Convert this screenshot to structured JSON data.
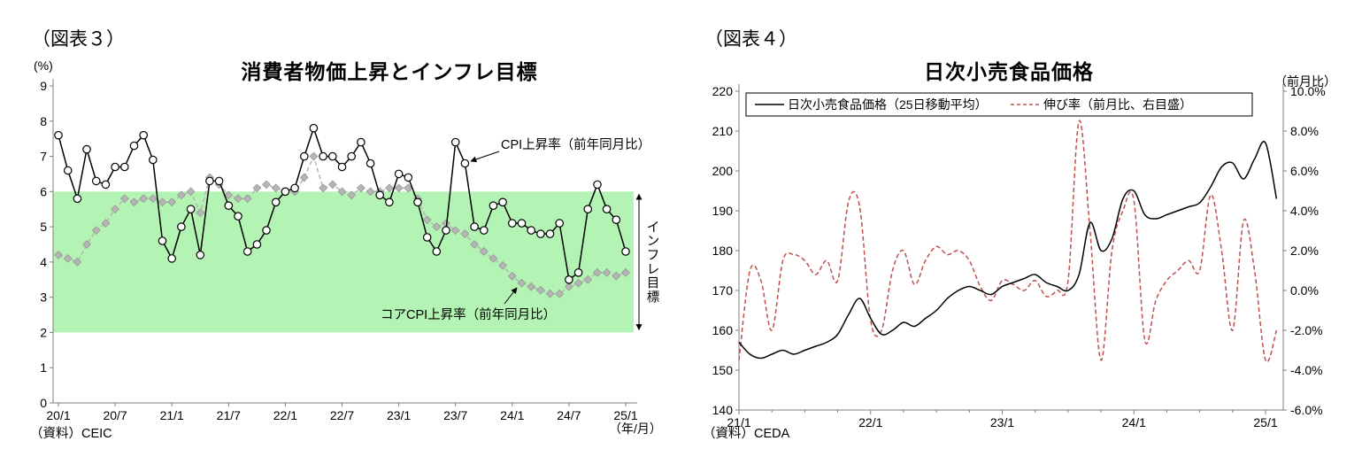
{
  "figures": [
    {
      "label": "（図表３）",
      "source": "（資料）CEIC"
    },
    {
      "label": "（図表４）",
      "source": "（資料）CEDA"
    }
  ],
  "chart_data": [
    {
      "type": "line",
      "title": "消費者物価上昇とインフレ目標",
      "ylabel": "(%)",
      "xlabel": "（年/月）",
      "ylim": [
        0,
        9
      ],
      "y_ticks": [
        0,
        1,
        2,
        3,
        4,
        5,
        6,
        7,
        8,
        9
      ],
      "x_ticks": [
        {
          "m": 0,
          "label": "20/1"
        },
        {
          "m": 6,
          "label": "20/7"
        },
        {
          "m": 12,
          "label": "21/1"
        },
        {
          "m": 18,
          "label": "21/7"
        },
        {
          "m": 24,
          "label": "22/1"
        },
        {
          "m": 30,
          "label": "22/7"
        },
        {
          "m": 36,
          "label": "23/1"
        },
        {
          "m": 42,
          "label": "23/7"
        },
        {
          "m": 48,
          "label": "24/1"
        },
        {
          "m": 54,
          "label": "24/7"
        },
        {
          "m": 60,
          "label": "25/1"
        }
      ],
      "band": {
        "from": 2,
        "to": 6,
        "color": "#b3f3b3",
        "label": "インフレ目標"
      },
      "series": [
        {
          "name": "CPI上昇率（前年同月比）",
          "style": "solid",
          "color": "#000000",
          "marker": "circle",
          "values": [
            7.6,
            6.6,
            5.8,
            7.2,
            6.3,
            6.2,
            6.7,
            6.7,
            7.3,
            7.6,
            6.9,
            4.6,
            4.1,
            5.0,
            5.5,
            4.2,
            6.3,
            6.3,
            5.6,
            5.3,
            4.3,
            4.5,
            4.9,
            5.7,
            6.0,
            6.1,
            7.0,
            7.8,
            7.0,
            7.0,
            6.7,
            7.0,
            7.4,
            6.8,
            5.9,
            5.7,
            6.5,
            6.4,
            5.7,
            4.7,
            4.3,
            4.9,
            7.4,
            6.8,
            5.0,
            4.9,
            5.6,
            5.7,
            5.1,
            5.1,
            4.9,
            4.8,
            4.8,
            5.1,
            3.5,
            3.7,
            5.5,
            6.2,
            5.5,
            5.2,
            4.3
          ]
        },
        {
          "name": "コアCPI上昇率（前年同月比）",
          "style": "dashed",
          "color": "#b5b5b5",
          "marker": "diamond",
          "values": [
            4.2,
            4.1,
            4.0,
            4.5,
            4.9,
            5.1,
            5.5,
            5.8,
            5.7,
            5.8,
            5.8,
            5.7,
            5.7,
            5.9,
            6.0,
            5.4,
            6.4,
            6.2,
            5.9,
            5.8,
            5.8,
            6.1,
            6.2,
            6.1,
            6.0,
            6.0,
            6.4,
            7.0,
            6.1,
            6.2,
            6.0,
            5.9,
            6.1,
            6.0,
            6.0,
            6.1,
            6.1,
            6.1,
            5.8,
            5.2,
            5.0,
            5.1,
            4.9,
            4.8,
            4.5,
            4.3,
            4.1,
            3.9,
            3.6,
            3.4,
            3.3,
            3.2,
            3.1,
            3.1,
            3.3,
            3.4,
            3.5,
            3.7,
            3.7,
            3.6,
            3.7
          ]
        }
      ]
    },
    {
      "type": "line",
      "title": "日次小売食品価格",
      "right_axis_label": "（前月比）",
      "ylim_left": [
        140,
        220
      ],
      "ylim_right": [
        -6,
        10
      ],
      "left_ticks": [
        140,
        150,
        160,
        170,
        180,
        190,
        200,
        210,
        220
      ],
      "right_ticks": [
        {
          "v": -6,
          "label": "-6.0%"
        },
        {
          "v": -4,
          "label": "-4.0%"
        },
        {
          "v": -2,
          "label": "-2.0%"
        },
        {
          "v": 0,
          "label": "0.0%"
        },
        {
          "v": 2,
          "label": "2.0%"
        },
        {
          "v": 4,
          "label": "4.0%"
        },
        {
          "v": 6,
          "label": "6.0%"
        },
        {
          "v": 8,
          "label": "8.0%"
        },
        {
          "v": 10,
          "label": "10.0%"
        }
      ],
      "x_ticks": [
        {
          "m": 0,
          "label": "21/1"
        },
        {
          "m": 12,
          "label": "22/1"
        },
        {
          "m": 24,
          "label": "23/1"
        },
        {
          "m": 36,
          "label": "24/1"
        },
        {
          "m": 48,
          "label": "25/1"
        }
      ],
      "series": [
        {
          "name": "日次小売食品価格（25日移動平均）",
          "axis": "left",
          "style": "solid",
          "color": "#000000",
          "values": [
            157,
            154,
            153,
            154,
            155,
            154,
            155,
            156,
            157,
            159,
            164,
            168,
            163,
            159,
            160,
            162,
            161,
            163,
            165,
            168,
            170,
            171,
            170,
            169,
            171,
            172,
            173,
            174,
            172,
            171,
            170,
            174,
            187,
            180,
            183,
            193,
            195,
            189,
            188,
            189,
            190,
            191,
            192,
            196,
            201,
            202,
            198,
            203,
            207,
            193
          ]
        },
        {
          "name": "伸び率（前月比、右目盛）",
          "axis": "right",
          "style": "dashed",
          "color": "#c0504d",
          "values": [
            -3.5,
            1.0,
            0.5,
            -2.0,
            1.5,
            1.8,
            1.5,
            0.8,
            1.5,
            0.5,
            4.5,
            4.2,
            -1.5,
            -2.0,
            1.0,
            2.0,
            0.3,
            1.5,
            2.2,
            1.8,
            2.0,
            1.5,
            0.2,
            -0.5,
            0.5,
            0.3,
            0.0,
            0.5,
            -0.3,
            0.0,
            0.5,
            8.5,
            3.0,
            -3.5,
            2.0,
            4.0,
            4.5,
            -2.5,
            -0.5,
            0.5,
            1.0,
            1.5,
            1.0,
            4.8,
            2.0,
            -2.0,
            3.5,
            1.0,
            -3.5,
            -2.0
          ]
        }
      ]
    }
  ]
}
